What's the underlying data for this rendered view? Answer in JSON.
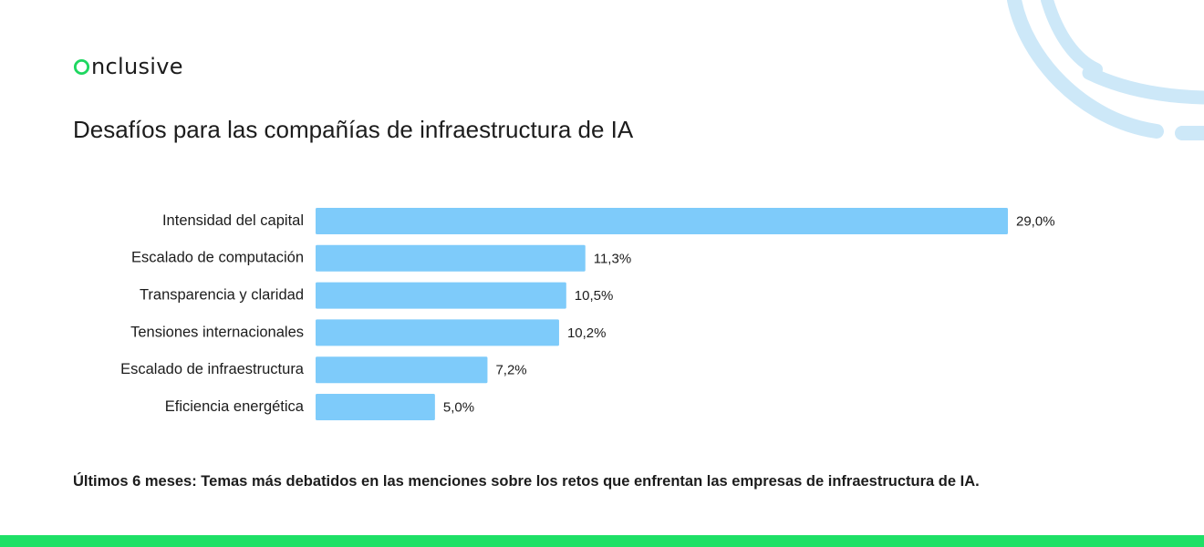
{
  "brand": {
    "name": "nclusive",
    "accent_color": "#1ed760"
  },
  "colors": {
    "bar": "#7ecbfa",
    "decor": "#cde8f8",
    "footer": "#1ee066",
    "text": "#1c1c1c"
  },
  "header": {
    "title": "Desafíos para las compañías de infraestructura de IA"
  },
  "footer": {
    "caption": "Últimos 6 meses: Temas más debatidos en las menciones sobre los retos que enfrentan las empresas de infraestructura de IA."
  },
  "chart_data": {
    "type": "bar",
    "orientation": "horizontal",
    "title": "Desafíos para las compañías de infraestructura de IA",
    "categories": [
      "Intensidad del capital",
      "Escalado de computación",
      "Transparencia y claridad",
      "Tensiones internacionales",
      "Escalado de infraestructura",
      "Eficiencia energética"
    ],
    "values": [
      29.0,
      11.3,
      10.5,
      10.2,
      7.2,
      5.0
    ],
    "value_labels": [
      "29,0%",
      "11,3%",
      "10,5%",
      "10,2%",
      "7,2%",
      "5,0%"
    ],
    "unit": "%",
    "xlabel": "",
    "ylabel": "",
    "grid": false,
    "legend": "none"
  }
}
